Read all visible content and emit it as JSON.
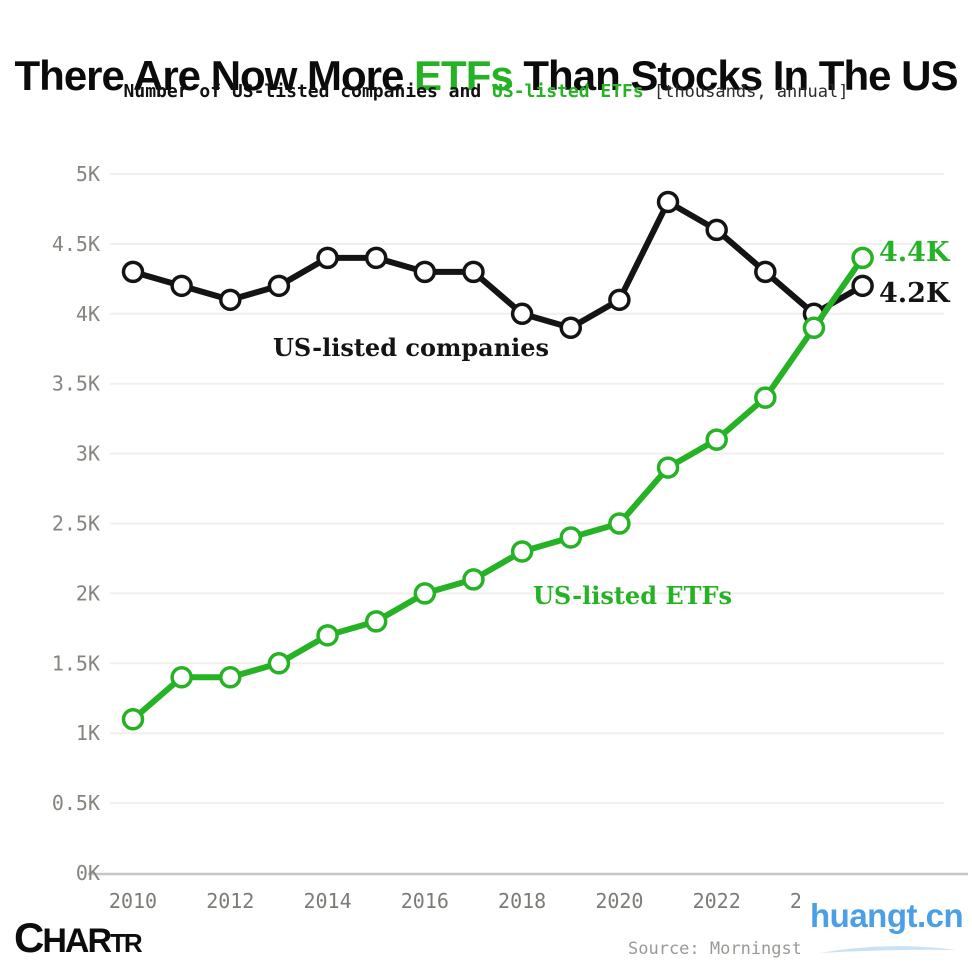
{
  "colors": {
    "green": "#25b225",
    "black": "#141414",
    "tick_gray": "#85847f",
    "source_gray": "#9a9995",
    "watermark_blue": "#4b9fe6",
    "grid": "#f0efec",
    "axis": "#c7c6c3"
  },
  "header": {
    "title": {
      "pre": "There Are Now More ",
      "highlight": "ETFs",
      "post": " Than Stocks In The US"
    },
    "subtitle": {
      "pre": "Number of US-listed companies and ",
      "highlight": "US-listed ETFs",
      "unit": " [thousands, annual]"
    }
  },
  "chart_data": {
    "type": "line",
    "title": "There Are Now More ETFs Than Stocks In The US",
    "subtitle": "Number of US-listed companies and US-listed ETFs [thousands, annual]",
    "x": [
      2010,
      2011,
      2012,
      2013,
      2014,
      2015,
      2016,
      2017,
      2018,
      2019,
      2020,
      2021,
      2022,
      2023,
      2024,
      2025
    ],
    "series": [
      {
        "name": "US-listed companies",
        "color": "#141414",
        "values": [
          4.3,
          4.2,
          4.1,
          4.2,
          4.4,
          4.4,
          4.3,
          4.3,
          4.0,
          3.9,
          4.1,
          4.8,
          4.6,
          4.3,
          4.0,
          4.2
        ],
        "end_label": "4.2K"
      },
      {
        "name": "US-listed ETFs",
        "color": "#25b225",
        "values": [
          1.1,
          1.4,
          1.4,
          1.5,
          1.7,
          1.8,
          2.0,
          2.1,
          2.3,
          2.4,
          2.5,
          2.9,
          3.1,
          3.4,
          3.9,
          4.4
        ],
        "end_label": "4.4K"
      }
    ],
    "unit": "thousands",
    "ylim": [
      0,
      5
    ],
    "ytick_values": [
      5,
      4.5,
      4,
      3.5,
      3,
      2.5,
      2,
      1.5,
      1,
      0.5,
      0
    ],
    "yticks": [
      "5K",
      "4.5K",
      "4K",
      "3.5K",
      "3K",
      "2.5K",
      "2K",
      "1.5K",
      "1K",
      "0.5K",
      "0K"
    ],
    "xticks": [
      2010,
      2012,
      2014,
      2016,
      2018,
      2020,
      2022,
      2024
    ],
    "grid": "horizontal faint, baseline axis only",
    "legend": "inline series annotations",
    "marker": "open circle"
  },
  "annotations": {
    "companies_label": "US-listed companies",
    "etfs_label": "US-listed ETFs",
    "etf_end_value": "4.4K",
    "companies_end_value": "4.2K"
  },
  "footer": {
    "logo_letters": [
      "C",
      "H",
      "A",
      "R",
      "T",
      "R"
    ],
    "source": "Source: Morningst"
  },
  "watermark": {
    "text": "huangt.cn"
  }
}
